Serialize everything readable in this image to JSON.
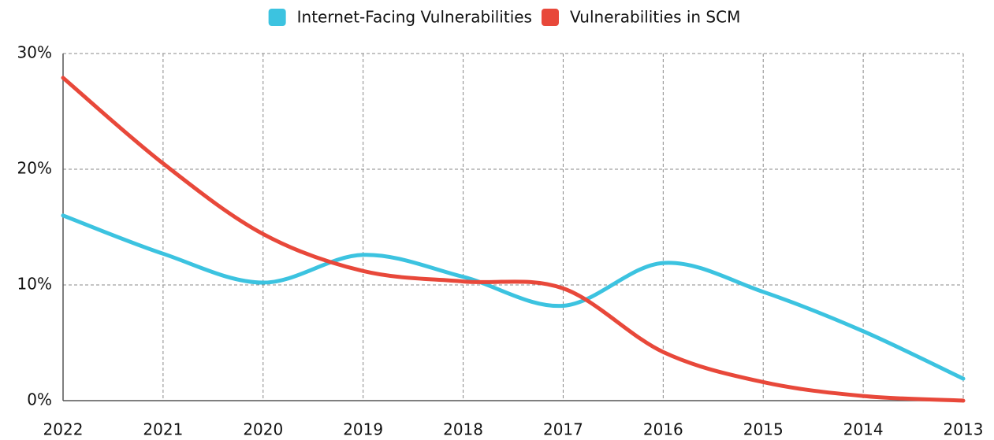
{
  "chart_data": {
    "type": "line",
    "categories": [
      "2022",
      "2021",
      "2020",
      "2019",
      "2018",
      "2017",
      "2016",
      "2015",
      "2014",
      "2013"
    ],
    "series": [
      {
        "name": "Internet-Facing Vulnerabilities",
        "color": "#3cc3e0",
        "values": [
          16,
          12.7,
          10.2,
          12.6,
          10.7,
          8.2,
          11.9,
          9.4,
          6.0,
          1.9
        ]
      },
      {
        "name": "Vulnerabilities in SCM",
        "color": "#e8483a",
        "values": [
          27.9,
          20.5,
          14.4,
          11.2,
          10.3,
          9.7,
          4.2,
          1.6,
          0.4,
          0
        ]
      }
    ],
    "ylim": [
      0,
      30
    ],
    "yticks": [
      {
        "value": 0,
        "label": "0%"
      },
      {
        "value": 10,
        "label": "10%"
      },
      {
        "value": 20,
        "label": "20%"
      },
      {
        "value": 30,
        "label": "30%"
      }
    ],
    "grid": true,
    "legend": "top"
  }
}
